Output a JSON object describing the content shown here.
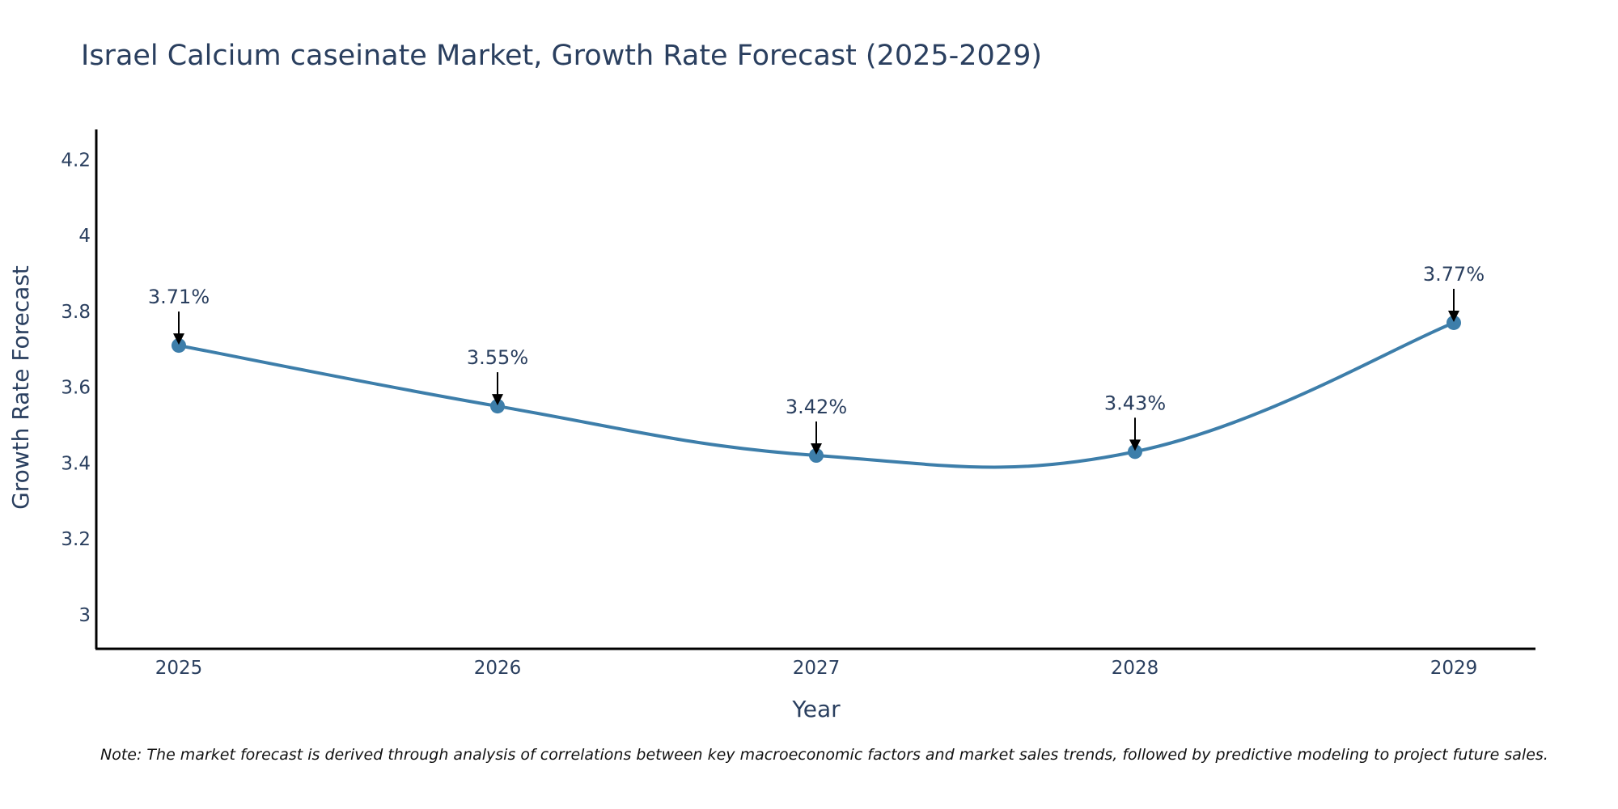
{
  "chart_data": {
    "type": "line",
    "title": "Israel Calcium caseinate Market, Growth Rate Forecast (2025-2029)",
    "xlabel": "Year",
    "ylabel": "Growth Rate Forecast",
    "x": [
      "2025",
      "2026",
      "2027",
      "2028",
      "2029"
    ],
    "series": [
      {
        "name": "Growth Rate Forecast",
        "values": [
          3.71,
          3.55,
          3.42,
          3.43,
          3.77
        ],
        "color": "#3d7eaa"
      }
    ],
    "data_labels": [
      "3.71%",
      "3.55%",
      "3.42%",
      "3.43%",
      "3.77%"
    ],
    "ylim": [
      2.91,
      4.28
    ],
    "yticks": [
      3,
      3.2,
      3.4,
      3.6,
      3.8,
      4,
      4.2
    ],
    "ytick_labels": [
      "3",
      "3.2",
      "3.4",
      "3.6",
      "3.8",
      "4",
      "4.2"
    ],
    "grid": false,
    "line_shape": "spline",
    "note": "Note: The market forecast is derived through analysis of correlations between key macroeconomic factors and market sales trends, followed by predictive modeling to project future sales."
  }
}
